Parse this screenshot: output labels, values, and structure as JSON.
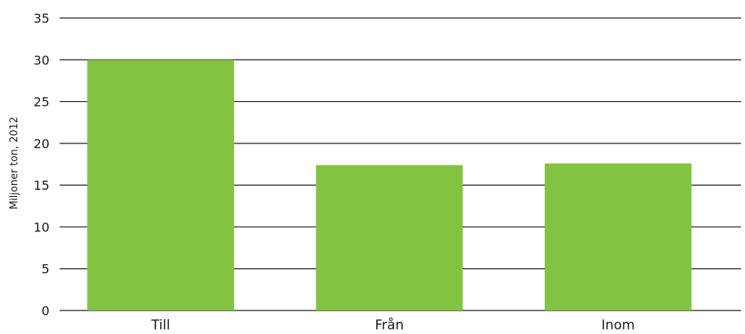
{
  "chart_data": {
    "type": "bar",
    "categories": [
      "Till",
      "Från",
      "Inom"
    ],
    "values": [
      30.0,
      17.4,
      17.6
    ],
    "title": "",
    "xlabel": "",
    "ylabel": "Miljoner ton, 2012",
    "ylim": [
      0,
      35
    ],
    "yticks": [
      0,
      5,
      10,
      15,
      20,
      25,
      30,
      35
    ],
    "grid": true,
    "bar_color": "#82c341",
    "grid_color": "#1a1a1a"
  }
}
